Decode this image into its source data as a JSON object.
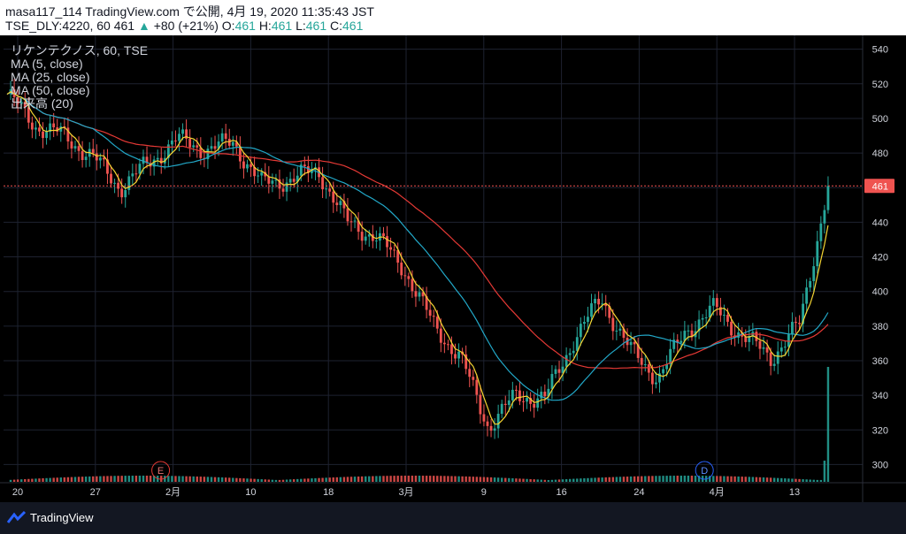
{
  "header": {
    "line1": "masa117_114 TradingView.com で公開, 4月 19, 2020 11:35:43 JST",
    "symbol_prefix": "TSE_DLY:4220, 60",
    "last_price": "461",
    "change": "+80 (+21%)",
    "o_label": "O:",
    "o_value": "461",
    "h_label": "H:",
    "h_value": "461",
    "l_label": "L:",
    "l_value": "461",
    "c_label": "C:",
    "c_value": "461"
  },
  "legend": {
    "title": "リケンテクノス, 60, TSE",
    "ma5": "MA (5, close)",
    "ma25": "MA (25, close)",
    "ma50": "MA (50, close)",
    "volume": "出来高 (20)"
  },
  "footer": {
    "brand": "TradingView"
  },
  "colors": {
    "up": "#26a69a",
    "down": "#ef5350",
    "ma5": "#f5d532",
    "ma25": "#22a8c8",
    "ma50": "#e53935",
    "price_tag": "#ef5350",
    "background": "#000000"
  },
  "chart_data": {
    "type": "candlestick",
    "y_axis": {
      "ticks": [
        300,
        320,
        340,
        360,
        380,
        400,
        420,
        440,
        460,
        480,
        500,
        520,
        540
      ],
      "range": [
        290,
        548
      ]
    },
    "x_axis": {
      "ticks": [
        "20",
        "27",
        "2月",
        "10",
        "18",
        "3月",
        "9",
        "16",
        "24",
        "4月",
        "13"
      ]
    },
    "last_price": 461,
    "events": [
      {
        "label": "E",
        "at": "2月"
      },
      {
        "label": "D",
        "at": "4月"
      }
    ],
    "close_path": [
      {
        "t": "20",
        "v": 514
      },
      {
        "t": "27",
        "v": 496
      },
      {
        "t": "",
        "v": 490
      },
      {
        "t": "",
        "v": 478
      },
      {
        "t": "2月",
        "v": 460
      },
      {
        "t": "",
        "v": 474
      },
      {
        "t": "10",
        "v": 488
      },
      {
        "t": "",
        "v": 482
      },
      {
        "t": "18",
        "v": 486
      },
      {
        "t": "",
        "v": 462
      },
      {
        "t": "",
        "v": 465
      },
      {
        "t": "",
        "v": 470
      },
      {
        "t": "3月",
        "v": 440
      },
      {
        "t": "",
        "v": 432
      },
      {
        "t": "",
        "v": 414
      },
      {
        "t": "9",
        "v": 382
      },
      {
        "t": "",
        "v": 362
      },
      {
        "t": "16",
        "v": 322
      },
      {
        "t": "",
        "v": 340
      },
      {
        "t": "24",
        "v": 338
      },
      {
        "t": "",
        "v": 372
      },
      {
        "t": "4月",
        "v": 396
      },
      {
        "t": "",
        "v": 366
      },
      {
        "t": "",
        "v": 350
      },
      {
        "t": "",
        "v": 378
      },
      {
        "t": "13",
        "v": 390
      },
      {
        "t": "",
        "v": 374
      },
      {
        "t": "",
        "v": 362
      },
      {
        "t": "",
        "v": 381
      },
      {
        "t": "",
        "v": 461
      }
    ]
  }
}
